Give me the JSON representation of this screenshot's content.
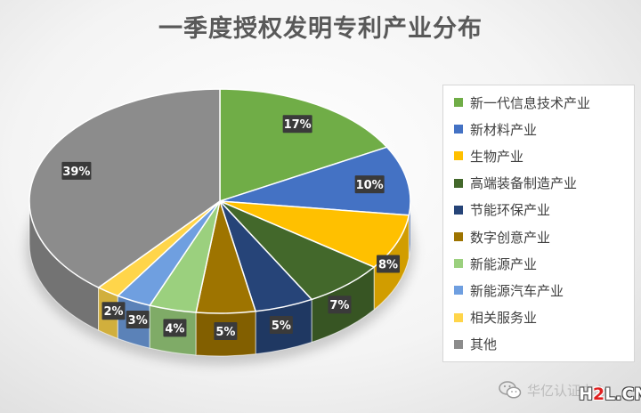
{
  "chart_data": {
    "type": "pie",
    "title": "一季度授权发明专利产业分布",
    "slices": [
      {
        "name": "新一代信息技术产业",
        "value": 17,
        "label": "17%",
        "color": "#70ad47"
      },
      {
        "name": "新材料产业",
        "value": 10,
        "label": "10%",
        "color": "#4472c4"
      },
      {
        "name": "生物产业",
        "value": 8,
        "label": "8%",
        "color": "#ffc000"
      },
      {
        "name": "高端装备制造产业",
        "value": 7,
        "label": "7%",
        "color": "#43682b"
      },
      {
        "name": "节能环保产业",
        "value": 5,
        "label": "5%",
        "color": "#264478"
      },
      {
        "name": "数字创意产业",
        "value": 5,
        "label": "5%",
        "color": "#9e7400"
      },
      {
        "name": "新能源产业",
        "value": 4,
        "label": "4%",
        "color": "#9bd07e"
      },
      {
        "name": "新能源汽车产业",
        "value": 3,
        "label": "3%",
        "color": "#6f9fe0"
      },
      {
        "name": "相关服务业",
        "value": 2,
        "label": "2%",
        "color": "#ffd54a"
      },
      {
        "name": "其他",
        "value": 39,
        "label": "39%",
        "color": "#8c8c8c"
      }
    ],
    "legend_position": "right",
    "style": "3d-pie"
  },
  "watermark": {
    "text": "华亿认证中心",
    "logo_text": "H2L.CN",
    "logo_parts": [
      "H",
      "2",
      "L.CN"
    ]
  }
}
